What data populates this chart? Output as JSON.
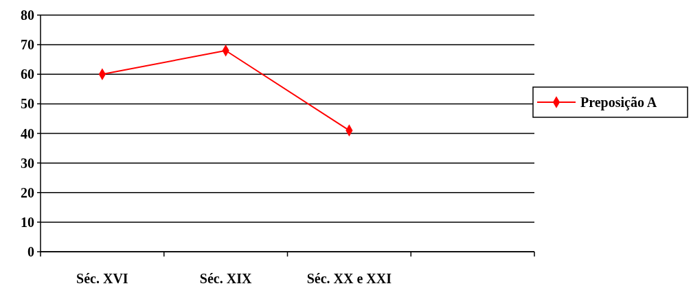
{
  "chart_data": {
    "type": "line",
    "categories": [
      "Séc. XVI",
      "Séc. XIX",
      "Séc. XX e XXI",
      null
    ],
    "series": [
      {
        "name": "Preposição A",
        "color": "#ff0000",
        "values": [
          60,
          68,
          41,
          null
        ]
      }
    ],
    "ylim": [
      0,
      80
    ],
    "yticks": [
      0,
      10,
      20,
      30,
      40,
      50,
      60,
      70,
      80
    ],
    "grid": "y",
    "legend": "right",
    "marker": "diamond",
    "line_style": "solid"
  }
}
